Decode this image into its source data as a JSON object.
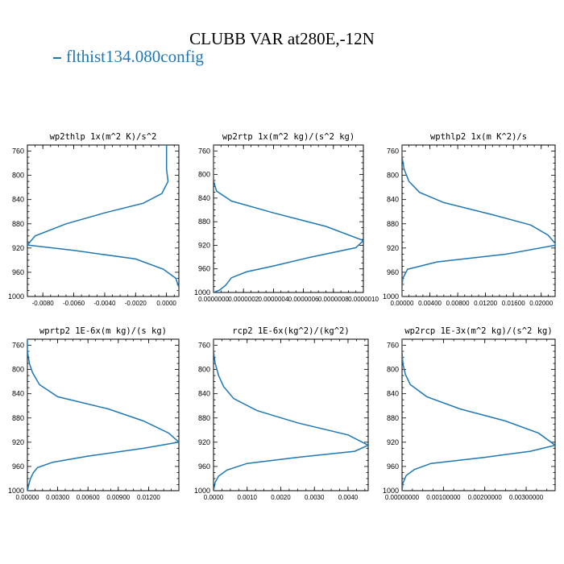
{
  "figure": {
    "title": "CLUBB VAR at280E,-12N",
    "legend": "flthist134.080config",
    "line_color": "#1f77b4"
  },
  "chart_data": [
    {
      "type": "line",
      "title": "wp2thlp  1x(m^2 K)/s^2",
      "xlim": [
        -0.009,
        0.0008
      ],
      "ylim": [
        1000,
        750
      ],
      "yticks": [
        760,
        800,
        840,
        880,
        920,
        960,
        1000
      ],
      "xticks": [
        -0.008,
        -0.006,
        -0.004,
        -0.002,
        0.0
      ],
      "xtick_labels": [
        "-0.0080",
        "-0.0060",
        "-0.0040",
        "-0.0020",
        "0.0000"
      ],
      "series": [
        {
          "x": [
            0.0,
            0.0,
            0.0,
            0.0001,
            -0.0003,
            -0.0015,
            -0.004,
            -0.0065,
            -0.0085,
            -0.009,
            -0.006,
            -0.002,
            -0.0002,
            0.0006,
            0.0008,
            0.0008
          ],
          "y": [
            750,
            770,
            790,
            810,
            830,
            846,
            862,
            880,
            900,
            915,
            924,
            938,
            955,
            970,
            985,
            1000
          ]
        }
      ]
    },
    {
      "type": "line",
      "title": "wp2rtp  1x(m^2 kg)/(s^2 kg)",
      "xlim": [
        0,
        1e-06
      ],
      "ylim": [
        1000,
        750
      ],
      "yticks": [
        760,
        800,
        840,
        880,
        920,
        960,
        1000
      ],
      "xticks": [
        0,
        2e-07,
        4e-07,
        6e-07,
        8e-07,
        1e-06
      ],
      "xtick_labels": [
        "0.0000000",
        "0.0000002",
        "0.0000004",
        "0.0000006",
        "0.0000008",
        "0.0000010"
      ],
      "series": [
        {
          "x": [
            0,
            0,
            0,
            0,
            2e-08,
            1.2e-07,
            4e-07,
            7.5e-07,
            1e-06,
            9.5e-07,
            6.5e-07,
            4e-07,
            2.2e-07,
            1.2e-07,
            8e-08,
            4e-08,
            0
          ],
          "y": [
            750,
            770,
            790,
            810,
            828,
            845,
            865,
            888,
            912,
            924,
            940,
            955,
            965,
            975,
            988,
            996,
            1000
          ]
        }
      ]
    },
    {
      "type": "line",
      "title": "wpthlp2  1x(m K^2)/s",
      "xlim": [
        0,
        0.022
      ],
      "ylim": [
        1000,
        750
      ],
      "yticks": [
        760,
        800,
        840,
        880,
        920,
        960,
        1000
      ],
      "xticks": [
        0,
        0.004,
        0.008,
        0.012,
        0.016,
        0.02
      ],
      "xtick_labels": [
        "0.00000",
        "0.00400",
        "0.00800",
        "0.01200",
        "0.01600",
        "0.02000"
      ],
      "series": [
        {
          "x": [
            0,
            0,
            0.0003,
            0.001,
            0.0025,
            0.006,
            0.013,
            0.0185,
            0.021,
            0.0222,
            0.015,
            0.005,
            0.0008,
            0.0001,
            0,
            0
          ],
          "y": [
            750,
            770,
            790,
            810,
            828,
            845,
            865,
            882,
            899,
            915,
            930,
            943,
            955,
            970,
            985,
            1000
          ]
        }
      ]
    },
    {
      "type": "line",
      "title": "wprtp2  1E-6x(m kg)/(s kg)",
      "xlim": [
        0,
        0.015
      ],
      "ylim": [
        1000,
        750
      ],
      "yticks": [
        760,
        800,
        840,
        880,
        920,
        960,
        1000
      ],
      "xticks": [
        0,
        0.003,
        0.006,
        0.009,
        0.012
      ],
      "xtick_labels": [
        "0.00000",
        "0.00300",
        "0.00600",
        "0.00900",
        "0.01200"
      ],
      "series": [
        {
          "x": [
            0,
            0,
            0.0002,
            0.0005,
            0.0012,
            0.003,
            0.008,
            0.0115,
            0.014,
            0.015,
            0.0115,
            0.006,
            0.0025,
            0.001,
            0.0006,
            0.0003,
            0.0001,
            0
          ],
          "y": [
            750,
            770,
            790,
            805,
            825,
            845,
            865,
            885,
            905,
            920,
            930,
            943,
            953,
            962,
            970,
            980,
            992,
            1000
          ]
        }
      ]
    },
    {
      "type": "line",
      "title": "rcp2  1E-6x(kg^2)/(kg^2)",
      "xlim": [
        0,
        0.0046
      ],
      "ylim": [
        1000,
        750
      ],
      "yticks": [
        760,
        800,
        840,
        880,
        920,
        960,
        1000
      ],
      "xticks": [
        0,
        0.001,
        0.002,
        0.003,
        0.004
      ],
      "xtick_labels": [
        "0.0000",
        "0.0010",
        "0.0020",
        "0.0030",
        "0.0040"
      ],
      "series": [
        {
          "x": [
            0,
            0,
            5e-05,
            0.00015,
            0.0003,
            0.0006,
            0.0013,
            0.0025,
            0.004,
            0.0046,
            0.0042,
            0.0025,
            0.001,
            0.0004,
            0.00015,
            5e-05,
            0
          ],
          "y": [
            750,
            770,
            790,
            810,
            828,
            848,
            868,
            888,
            908,
            925,
            935,
            945,
            955,
            966,
            976,
            986,
            1000
          ]
        }
      ]
    },
    {
      "type": "line",
      "title": "wp2rcp  1E-3x(m^2 kg)/(s^2 kg)",
      "xlim": [
        0,
        0.0037
      ],
      "ylim": [
        1000,
        750
      ],
      "yticks": [
        760,
        800,
        840,
        880,
        920,
        960,
        1000
      ],
      "xticks": [
        0,
        0.001,
        0.002,
        0.003
      ],
      "xtick_labels": [
        "0.00000000",
        "0.00100000",
        "0.00200000",
        "0.00300000"
      ],
      "series": [
        {
          "x": [
            0,
            0,
            2e-05,
            8e-05,
            0.0002,
            0.0006,
            0.0014,
            0.0025,
            0.0033,
            0.0037,
            0.0031,
            0.002,
            0.0007,
            0.0003,
            0.0001,
            2e-05,
            0
          ],
          "y": [
            750,
            770,
            790,
            808,
            825,
            845,
            865,
            885,
            905,
            925,
            935,
            945,
            955,
            965,
            975,
            988,
            1000
          ]
        }
      ]
    }
  ]
}
